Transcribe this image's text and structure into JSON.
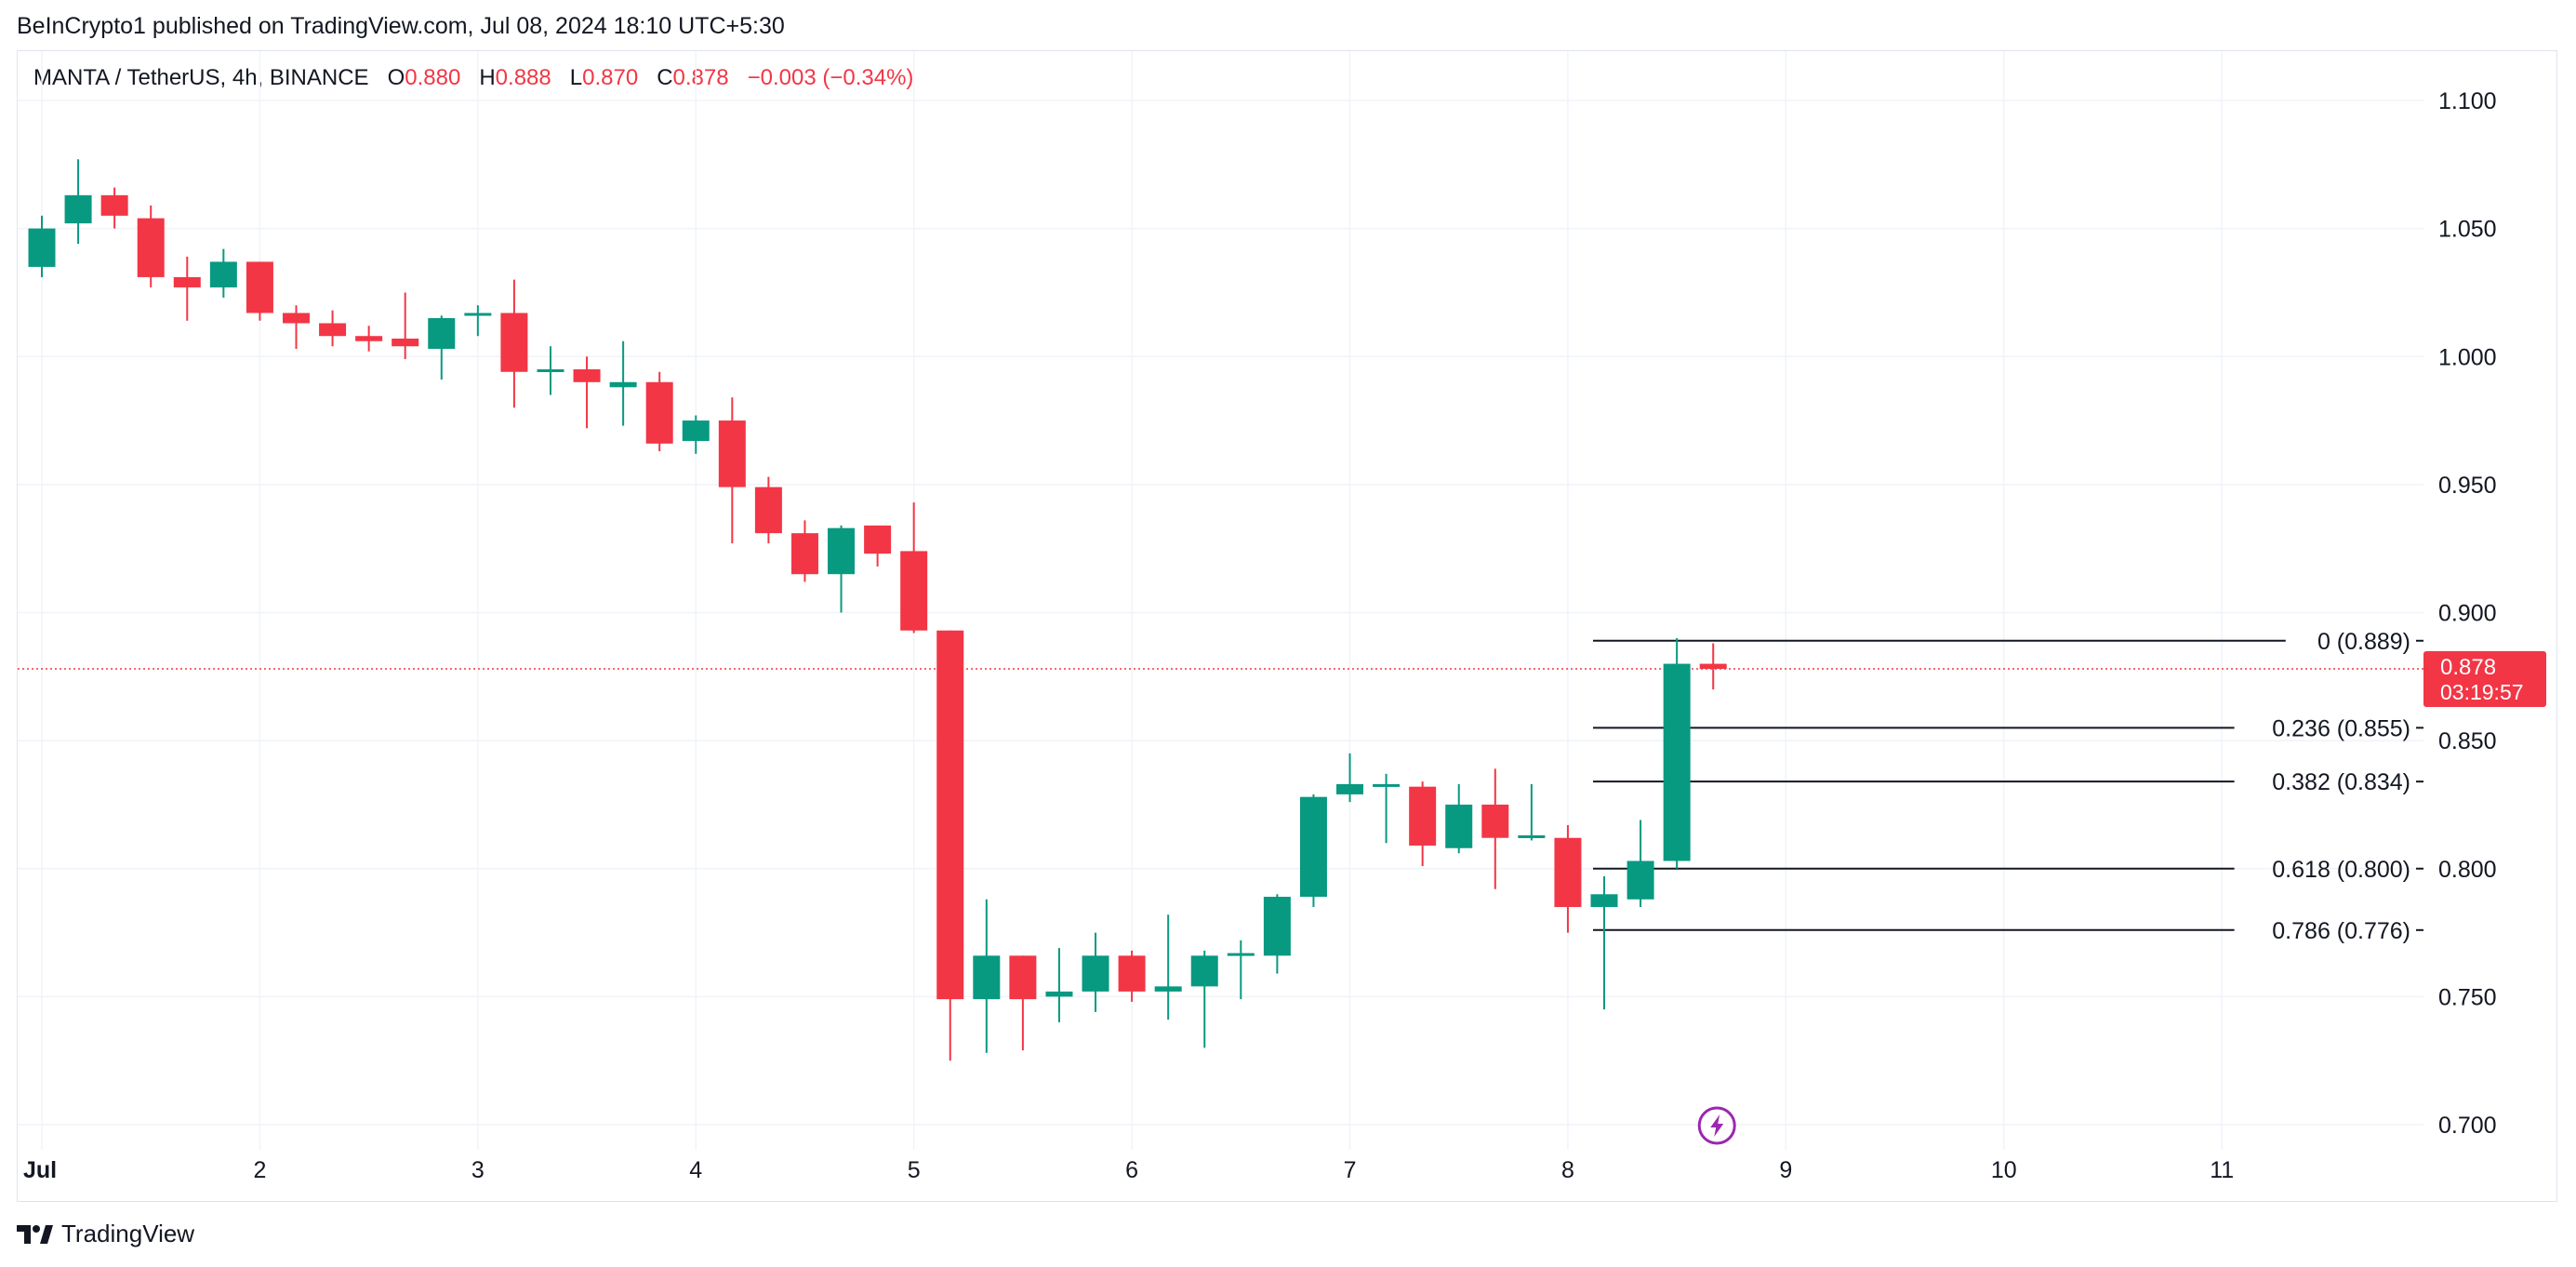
{
  "header": {
    "published": "BeInCrypto1 published on TradingView.com, Jul 08, 2024 18:10 UTC+5:30"
  },
  "legend": {
    "symbol": "MANTA / TetherUS, 4h, BINANCE",
    "o_label": "O",
    "o_value": "0.880",
    "h_label": "H",
    "h_value": "0.888",
    "l_label": "L",
    "l_value": "0.870",
    "c_label": "C",
    "c_value": "0.878",
    "change": "−0.003 (−0.34%)"
  },
  "colors": {
    "up": "#089981",
    "down": "#f23645",
    "grid": "#f0f3fa",
    "text": "#131722",
    "fib_line": "#131722",
    "lightning": "#9c27b0"
  },
  "chart_data": {
    "type": "candlestick",
    "symbol": "MANTA / TetherUS",
    "interval": "4h",
    "exchange": "BINANCE",
    "ylim": [
      0.69,
      1.115
    ],
    "y_ticks": [
      0.7,
      0.75,
      0.8,
      0.85,
      0.9,
      0.95,
      1.0,
      1.05,
      1.1
    ],
    "y_tick_labels": [
      "0.700",
      "0.750",
      "0.800",
      "0.850",
      "0.900",
      "0.950",
      "1.000",
      "1.050",
      "1.100"
    ],
    "x_ticks": [
      {
        "index": 0,
        "label": "Jul",
        "bold": true
      },
      {
        "index": 6,
        "label": "2"
      },
      {
        "index": 12,
        "label": "3"
      },
      {
        "index": 18,
        "label": "4"
      },
      {
        "index": 24,
        "label": "5"
      },
      {
        "index": 30,
        "label": "6"
      },
      {
        "index": 36,
        "label": "7"
      },
      {
        "index": 42,
        "label": "8"
      },
      {
        "index": 48,
        "label": "9"
      },
      {
        "index": 54,
        "label": "10"
      },
      {
        "index": 60,
        "label": "11"
      }
    ],
    "grid": true,
    "candles": [
      {
        "o": 1.035,
        "h": 1.055,
        "l": 1.031,
        "c": 1.05
      },
      {
        "o": 1.052,
        "h": 1.077,
        "l": 1.044,
        "c": 1.063
      },
      {
        "o": 1.063,
        "h": 1.066,
        "l": 1.05,
        "c": 1.055
      },
      {
        "o": 1.054,
        "h": 1.059,
        "l": 1.027,
        "c": 1.031
      },
      {
        "o": 1.031,
        "h": 1.039,
        "l": 1.014,
        "c": 1.027
      },
      {
        "o": 1.027,
        "h": 1.042,
        "l": 1.023,
        "c": 1.037
      },
      {
        "o": 1.037,
        "h": 1.037,
        "l": 1.014,
        "c": 1.017
      },
      {
        "o": 1.017,
        "h": 1.02,
        "l": 1.003,
        "c": 1.013
      },
      {
        "o": 1.013,
        "h": 1.018,
        "l": 1.004,
        "c": 1.008
      },
      {
        "o": 1.008,
        "h": 1.012,
        "l": 1.002,
        "c": 1.006
      },
      {
        "o": 1.007,
        "h": 1.025,
        "l": 0.999,
        "c": 1.004
      },
      {
        "o": 1.003,
        "h": 1.016,
        "l": 0.991,
        "c": 1.015
      },
      {
        "o": 1.016,
        "h": 1.02,
        "l": 1.008,
        "c": 1.017
      },
      {
        "o": 1.017,
        "h": 1.03,
        "l": 0.98,
        "c": 0.994
      },
      {
        "o": 0.994,
        "h": 1.004,
        "l": 0.985,
        "c": 0.995
      },
      {
        "o": 0.995,
        "h": 1.0,
        "l": 0.972,
        "c": 0.99
      },
      {
        "o": 0.988,
        "h": 1.006,
        "l": 0.973,
        "c": 0.99
      },
      {
        "o": 0.99,
        "h": 0.994,
        "l": 0.963,
        "c": 0.966
      },
      {
        "o": 0.967,
        "h": 0.977,
        "l": 0.962,
        "c": 0.975
      },
      {
        "o": 0.975,
        "h": 0.984,
        "l": 0.927,
        "c": 0.949
      },
      {
        "o": 0.949,
        "h": 0.953,
        "l": 0.927,
        "c": 0.931
      },
      {
        "o": 0.931,
        "h": 0.936,
        "l": 0.912,
        "c": 0.915
      },
      {
        "o": 0.915,
        "h": 0.934,
        "l": 0.9,
        "c": 0.933
      },
      {
        "o": 0.934,
        "h": 0.934,
        "l": 0.918,
        "c": 0.923
      },
      {
        "o": 0.924,
        "h": 0.943,
        "l": 0.892,
        "c": 0.893
      },
      {
        "o": 0.893,
        "h": 0.893,
        "l": 0.725,
        "c": 0.749
      },
      {
        "o": 0.749,
        "h": 0.788,
        "l": 0.728,
        "c": 0.766
      },
      {
        "o": 0.766,
        "h": 0.766,
        "l": 0.729,
        "c": 0.749
      },
      {
        "o": 0.75,
        "h": 0.769,
        "l": 0.74,
        "c": 0.752
      },
      {
        "o": 0.752,
        "h": 0.775,
        "l": 0.744,
        "c": 0.766
      },
      {
        "o": 0.766,
        "h": 0.768,
        "l": 0.748,
        "c": 0.752
      },
      {
        "o": 0.752,
        "h": 0.782,
        "l": 0.741,
        "c": 0.754
      },
      {
        "o": 0.754,
        "h": 0.768,
        "l": 0.73,
        "c": 0.766
      },
      {
        "o": 0.766,
        "h": 0.772,
        "l": 0.749,
        "c": 0.767
      },
      {
        "o": 0.766,
        "h": 0.79,
        "l": 0.759,
        "c": 0.789
      },
      {
        "o": 0.789,
        "h": 0.829,
        "l": 0.785,
        "c": 0.828
      },
      {
        "o": 0.829,
        "h": 0.845,
        "l": 0.826,
        "c": 0.833
      },
      {
        "o": 0.833,
        "h": 0.837,
        "l": 0.81,
        "c": 0.833
      },
      {
        "o": 0.832,
        "h": 0.834,
        "l": 0.801,
        "c": 0.809
      },
      {
        "o": 0.808,
        "h": 0.833,
        "l": 0.806,
        "c": 0.825
      },
      {
        "o": 0.825,
        "h": 0.839,
        "l": 0.792,
        "c": 0.812
      },
      {
        "o": 0.813,
        "h": 0.833,
        "l": 0.811,
        "c": 0.813
      },
      {
        "o": 0.812,
        "h": 0.817,
        "l": 0.775,
        "c": 0.785
      },
      {
        "o": 0.785,
        "h": 0.797,
        "l": 0.745,
        "c": 0.79
      },
      {
        "o": 0.788,
        "h": 0.819,
        "l": 0.785,
        "c": 0.803
      },
      {
        "o": 0.803,
        "h": 0.89,
        "l": 0.8,
        "c": 0.88
      },
      {
        "o": 0.88,
        "h": 0.888,
        "l": 0.87,
        "c": 0.878
      }
    ],
    "fib_levels": [
      {
        "ratio": "0",
        "value": 0.889,
        "label": "0 (0.889)"
      },
      {
        "ratio": "0.236",
        "value": 0.855,
        "label": "0.236 (0.855)"
      },
      {
        "ratio": "0.382",
        "value": 0.834,
        "label": "0.382 (0.834)"
      },
      {
        "ratio": "0.618",
        "value": 0.8,
        "label": "0.618 (0.800)"
      },
      {
        "ratio": "0.786",
        "value": 0.776,
        "label": "0.786 (0.776)"
      }
    ],
    "fib_start_index": 43,
    "last_price": {
      "value": 0.878,
      "label": "0.878",
      "countdown": "03:19:57"
    }
  },
  "footer": {
    "brand": "TradingView"
  }
}
